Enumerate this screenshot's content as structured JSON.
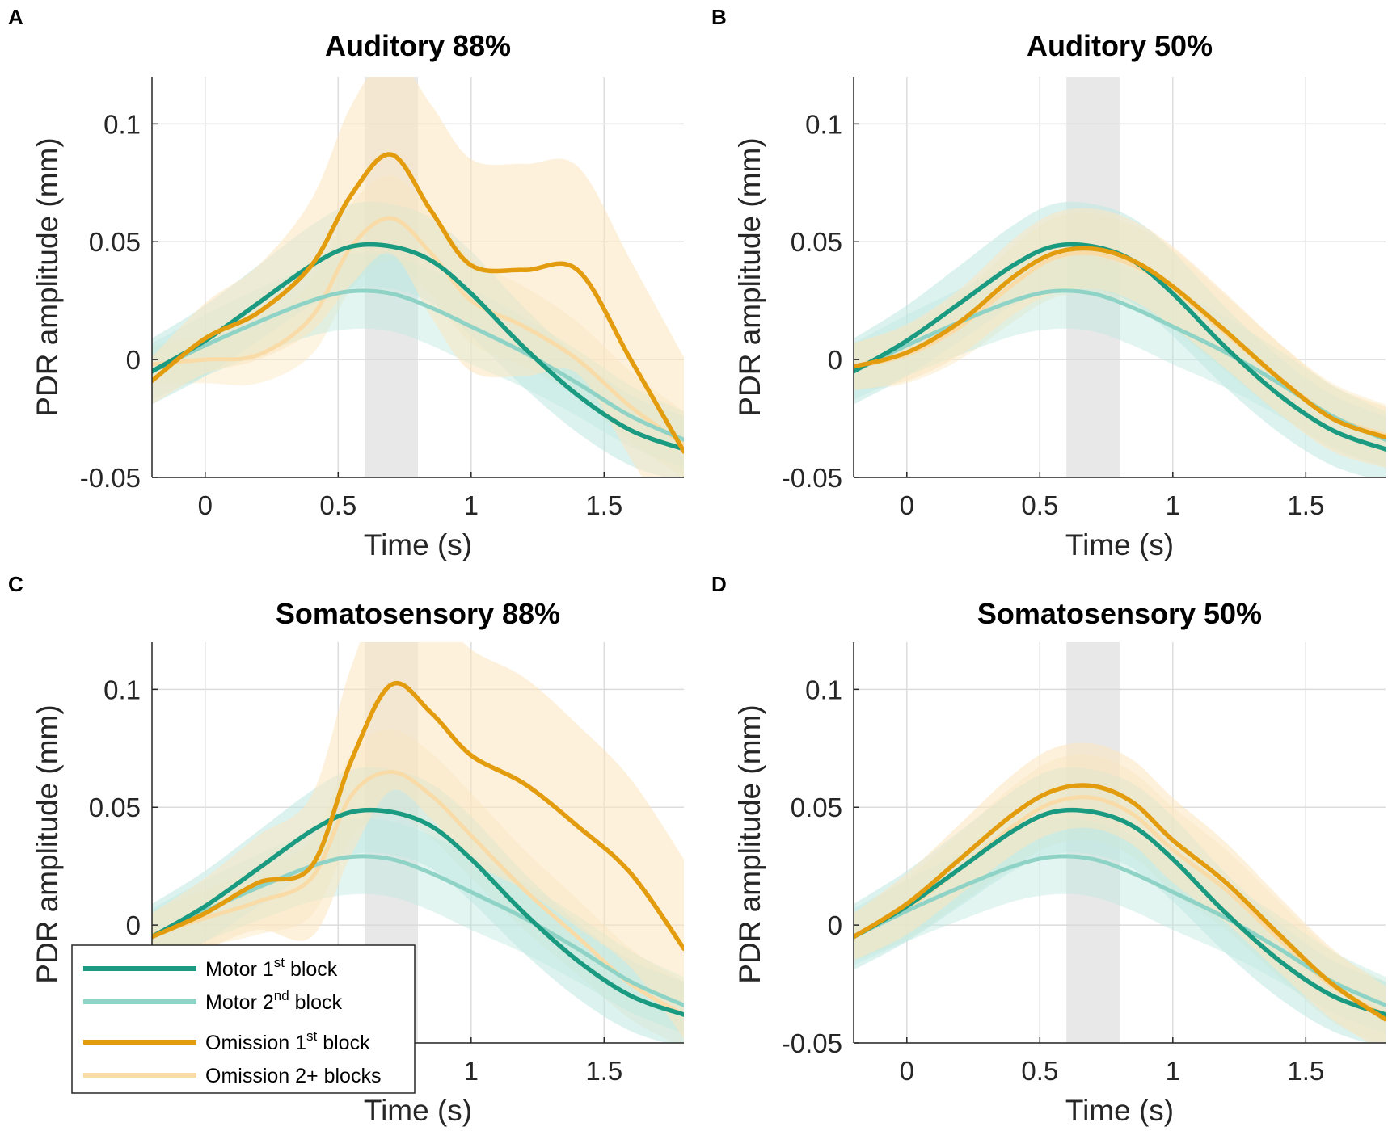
{
  "colors": {
    "motor_1st": "#1a9a80",
    "motor_2nd": "#8ed3c6",
    "omission_1st": "#e39c0e",
    "omission_2plus": "#f9dba7",
    "motor_band": "#bfe8e1",
    "omission_band": "#fbe6bf",
    "window_shade": "#d8d8d8"
  },
  "legend": {
    "panel": "C",
    "items": [
      {
        "key": "motor_1st",
        "base": "Motor 1",
        "sup": "st",
        "after": " block"
      },
      {
        "key": "motor_2nd",
        "base": "Motor 2",
        "sup": "nd",
        "after": " block"
      },
      {
        "key": "omission_1st",
        "base": "Omission 1",
        "sup": "st",
        "after": " block"
      },
      {
        "key": "omission_2plus",
        "base": "Omission 2+ blocks",
        "sup": "",
        "after": ""
      }
    ]
  },
  "chart_data": [
    {
      "id": "A",
      "panel_label": "A",
      "type": "line",
      "title": "Auditory 88%",
      "xlabel": "Time (s)",
      "ylabel": "PDR amplitude (mm)",
      "xlim": [
        -0.2,
        1.8
      ],
      "ylim": [
        -0.05,
        0.12
      ],
      "xticks": [
        0,
        0.5,
        1,
        1.5
      ],
      "xtick_labels": [
        "0",
        "0.5",
        "1",
        "1.5"
      ],
      "yticks": [
        -0.05,
        0,
        0.05,
        0.1
      ],
      "ytick_labels": [
        "-0.05",
        "0",
        "0.05",
        "0.1"
      ],
      "grid": true,
      "shaded_window": [
        0.6,
        0.8
      ],
      "x": [
        -0.2,
        0,
        0.2,
        0.4,
        0.55,
        0.7,
        0.85,
        1.0,
        1.2,
        1.4,
        1.6,
        1.8
      ],
      "series": [
        {
          "name": "Motor 1st block",
          "key": "motor_1st",
          "values": [
            -0.005,
            0.008,
            0.024,
            0.04,
            0.048,
            0.048,
            0.042,
            0.028,
            0.005,
            -0.015,
            -0.03,
            -0.038
          ],
          "band": [
            0.014,
            0.015,
            0.016,
            0.017,
            0.018,
            0.018,
            0.018,
            0.018,
            0.017,
            0.016,
            0.015,
            0.014
          ]
        },
        {
          "name": "Motor 2nd block",
          "key": "motor_2nd",
          "values": [
            -0.005,
            0.006,
            0.016,
            0.025,
            0.029,
            0.028,
            0.022,
            0.014,
            0.003,
            -0.01,
            -0.024,
            -0.034
          ],
          "band": [
            0.012,
            0.013,
            0.014,
            0.015,
            0.016,
            0.016,
            0.016,
            0.016,
            0.015,
            0.014,
            0.013,
            0.012
          ]
        },
        {
          "name": "Omission 1st block",
          "key": "omission_1st",
          "values": [
            -0.009,
            0.009,
            0.02,
            0.04,
            0.07,
            0.087,
            0.063,
            0.04,
            0.038,
            0.038,
            0.0,
            -0.039
          ],
          "band": [
            0.01,
            0.015,
            0.02,
            0.028,
            0.038,
            0.042,
            0.045,
            0.045,
            0.045,
            0.044,
            0.042,
            0.04
          ]
        },
        {
          "name": "Omission 2+ blocks",
          "key": "omission_2plus",
          "values": [
            -0.002,
            0.0,
            0.002,
            0.018,
            0.048,
            0.06,
            0.045,
            0.025,
            0.014,
            0.0,
            -0.02,
            -0.036
          ],
          "band": [
            0.008,
            0.01,
            0.012,
            0.016,
            0.018,
            0.018,
            0.018,
            0.018,
            0.017,
            0.016,
            0.015,
            0.014
          ]
        }
      ]
    },
    {
      "id": "B",
      "panel_label": "B",
      "type": "line",
      "title": "Auditory 50%",
      "xlabel": "Time (s)",
      "ylabel": "PDR amplitude (mm)",
      "xlim": [
        -0.2,
        1.8
      ],
      "ylim": [
        -0.05,
        0.12
      ],
      "xticks": [
        0,
        0.5,
        1,
        1.5
      ],
      "xtick_labels": [
        "0",
        "0.5",
        "1",
        "1.5"
      ],
      "yticks": [
        -0.05,
        0,
        0.05,
        0.1
      ],
      "ytick_labels": [
        "-0.05",
        "0",
        "0.05",
        "0.1"
      ],
      "grid": true,
      "shaded_window": [
        0.6,
        0.8
      ],
      "x": [
        -0.2,
        0,
        0.2,
        0.4,
        0.55,
        0.7,
        0.85,
        1.0,
        1.2,
        1.4,
        1.6,
        1.8
      ],
      "series": [
        {
          "name": "Motor 1st block",
          "key": "motor_1st",
          "values": [
            -0.005,
            0.008,
            0.024,
            0.04,
            0.048,
            0.048,
            0.042,
            0.028,
            0.005,
            -0.015,
            -0.03,
            -0.038
          ],
          "band": [
            0.014,
            0.015,
            0.016,
            0.017,
            0.018,
            0.018,
            0.018,
            0.018,
            0.017,
            0.016,
            0.015,
            0.014
          ]
        },
        {
          "name": "Motor 2nd block",
          "key": "motor_2nd",
          "values": [
            -0.005,
            0.006,
            0.016,
            0.025,
            0.029,
            0.028,
            0.022,
            0.014,
            0.003,
            -0.01,
            -0.024,
            -0.034
          ],
          "band": [
            0.012,
            0.013,
            0.014,
            0.015,
            0.016,
            0.016,
            0.016,
            0.016,
            0.015,
            0.014,
            0.013,
            0.012
          ]
        },
        {
          "name": "Omission 1st block",
          "key": "omission_1st",
          "values": [
            -0.003,
            0.003,
            0.016,
            0.035,
            0.045,
            0.047,
            0.042,
            0.031,
            0.012,
            -0.008,
            -0.025,
            -0.033
          ],
          "band": [
            0.01,
            0.012,
            0.014,
            0.016,
            0.017,
            0.017,
            0.017,
            0.017,
            0.016,
            0.015,
            0.014,
            0.013
          ]
        },
        {
          "name": "Omission 2+ blocks",
          "key": "omission_2plus",
          "values": [
            -0.003,
            0.002,
            0.014,
            0.032,
            0.043,
            0.045,
            0.04,
            0.03,
            0.011,
            -0.008,
            -0.024,
            -0.032
          ],
          "band": [
            0.01,
            0.012,
            0.014,
            0.016,
            0.017,
            0.017,
            0.017,
            0.017,
            0.016,
            0.015,
            0.014,
            0.013
          ]
        }
      ]
    },
    {
      "id": "C",
      "panel_label": "C",
      "type": "line",
      "title": "Somatosensory 88%",
      "xlabel": "Time (s)",
      "ylabel": "PDR amplitude (mm)",
      "xlim": [
        -0.2,
        1.8
      ],
      "ylim": [
        -0.05,
        0.12
      ],
      "xticks": [
        0,
        0.5,
        1,
        1.5
      ],
      "xtick_labels": [
        "0",
        "0.5",
        "1",
        "1.5"
      ],
      "yticks": [
        -0.05,
        0,
        0.05,
        0.1
      ],
      "ytick_labels": [
        "-0.05",
        "0",
        "0.05",
        "0.1"
      ],
      "grid": true,
      "shaded_window": [
        0.6,
        0.8
      ],
      "x": [
        -0.2,
        0,
        0.2,
        0.4,
        0.55,
        0.7,
        0.85,
        1.0,
        1.2,
        1.4,
        1.6,
        1.8
      ],
      "series": [
        {
          "name": "Motor 1st block",
          "key": "motor_1st",
          "values": [
            -0.005,
            0.008,
            0.024,
            0.04,
            0.048,
            0.048,
            0.042,
            0.028,
            0.005,
            -0.015,
            -0.03,
            -0.038
          ],
          "band": [
            0.014,
            0.015,
            0.016,
            0.017,
            0.018,
            0.018,
            0.018,
            0.018,
            0.017,
            0.016,
            0.015,
            0.014
          ]
        },
        {
          "name": "Motor 2nd block",
          "key": "motor_2nd",
          "values": [
            -0.005,
            0.006,
            0.016,
            0.025,
            0.029,
            0.028,
            0.022,
            0.014,
            0.003,
            -0.01,
            -0.024,
            -0.034
          ],
          "band": [
            0.012,
            0.013,
            0.014,
            0.015,
            0.016,
            0.016,
            0.016,
            0.016,
            0.015,
            0.014,
            0.013,
            0.012
          ]
        },
        {
          "name": "Omission 1st block",
          "key": "omission_1st",
          "values": [
            -0.005,
            0.005,
            0.018,
            0.025,
            0.07,
            0.102,
            0.09,
            0.072,
            0.06,
            0.042,
            0.022,
            -0.01
          ],
          "band": [
            0.01,
            0.015,
            0.02,
            0.03,
            0.04,
            0.045,
            0.045,
            0.045,
            0.045,
            0.043,
            0.04,
            0.038
          ]
        },
        {
          "name": "Omission 2+ blocks",
          "key": "omission_2plus",
          "values": [
            -0.004,
            0.003,
            0.01,
            0.02,
            0.055,
            0.065,
            0.055,
            0.038,
            0.015,
            -0.005,
            -0.025,
            -0.038
          ],
          "band": [
            0.01,
            0.012,
            0.014,
            0.016,
            0.018,
            0.018,
            0.018,
            0.018,
            0.017,
            0.016,
            0.015,
            0.014
          ]
        }
      ]
    },
    {
      "id": "D",
      "panel_label": "D",
      "type": "line",
      "title": "Somatosensory 50%",
      "xlabel": "Time (s)",
      "ylabel": "PDR amplitude (mm)",
      "xlim": [
        -0.2,
        1.8
      ],
      "ylim": [
        -0.05,
        0.12
      ],
      "xticks": [
        0,
        0.5,
        1,
        1.5
      ],
      "xtick_labels": [
        "0",
        "0.5",
        "1",
        "1.5"
      ],
      "yticks": [
        -0.05,
        0,
        0.05,
        0.1
      ],
      "ytick_labels": [
        "-0.05",
        "0",
        "0.05",
        "0.1"
      ],
      "grid": true,
      "shaded_window": [
        0.6,
        0.8
      ],
      "x": [
        -0.2,
        0,
        0.2,
        0.4,
        0.55,
        0.7,
        0.85,
        1.0,
        1.2,
        1.4,
        1.6,
        1.8
      ],
      "series": [
        {
          "name": "Motor 1st block",
          "key": "motor_1st",
          "values": [
            -0.005,
            0.008,
            0.024,
            0.04,
            0.048,
            0.048,
            0.042,
            0.028,
            0.005,
            -0.015,
            -0.03,
            -0.038
          ],
          "band": [
            0.014,
            0.015,
            0.016,
            0.017,
            0.018,
            0.018,
            0.018,
            0.018,
            0.017,
            0.016,
            0.015,
            0.014
          ]
        },
        {
          "name": "Motor 2nd block",
          "key": "motor_2nd",
          "values": [
            -0.005,
            0.006,
            0.016,
            0.025,
            0.029,
            0.028,
            0.022,
            0.014,
            0.003,
            -0.01,
            -0.024,
            -0.034
          ],
          "band": [
            0.012,
            0.013,
            0.014,
            0.015,
            0.016,
            0.016,
            0.016,
            0.016,
            0.015,
            0.014,
            0.013,
            0.012
          ]
        },
        {
          "name": "Omission 1st block",
          "key": "omission_1st",
          "values": [
            -0.005,
            0.009,
            0.028,
            0.047,
            0.057,
            0.059,
            0.052,
            0.036,
            0.018,
            -0.004,
            -0.025,
            -0.04
          ],
          "band": [
            0.01,
            0.013,
            0.015,
            0.017,
            0.018,
            0.018,
            0.018,
            0.018,
            0.017,
            0.016,
            0.015,
            0.014
          ]
        },
        {
          "name": "Omission 2+ blocks",
          "key": "omission_2plus",
          "values": [
            -0.005,
            0.007,
            0.024,
            0.042,
            0.052,
            0.054,
            0.047,
            0.032,
            0.015,
            -0.006,
            -0.026,
            -0.038
          ],
          "band": [
            0.01,
            0.013,
            0.015,
            0.017,
            0.018,
            0.018,
            0.018,
            0.018,
            0.017,
            0.016,
            0.015,
            0.014
          ]
        }
      ]
    }
  ]
}
